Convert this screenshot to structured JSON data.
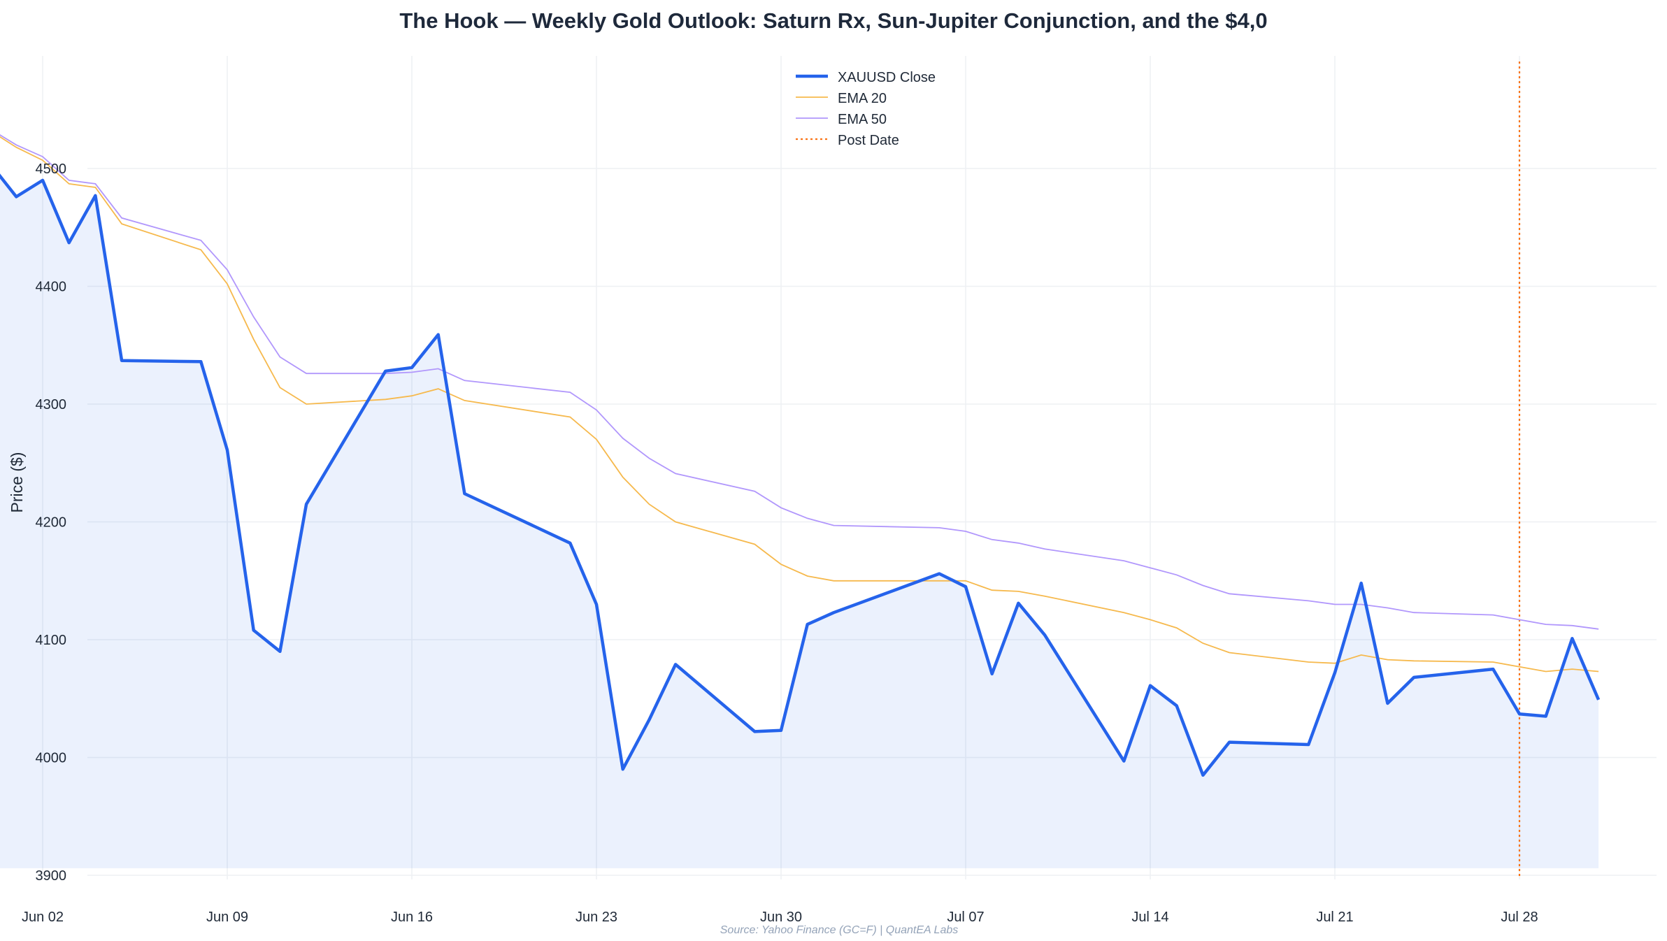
{
  "chart_data": {
    "type": "line",
    "title": "The Hook — Weekly Gold Outlook: Saturn Rx, Sun-Jupiter Conjunction, and the $4,0",
    "xlabel": "",
    "ylabel": "Price ($)",
    "ylim": [
      3900,
      4600
    ],
    "yticks": [
      3900,
      4000,
      4100,
      4200,
      4300,
      4400,
      4500
    ],
    "xticks": [
      {
        "date": "2025-06-02",
        "label": "Jun 02"
      },
      {
        "date": "2025-06-09",
        "label": "Jun 09"
      },
      {
        "date": "2025-06-16",
        "label": "Jun 16"
      },
      {
        "date": "2025-06-23",
        "label": "Jun 23"
      },
      {
        "date": "2025-06-30",
        "label": "Jun 30"
      },
      {
        "date": "2025-07-07",
        "label": "Jul 07"
      },
      {
        "date": "2025-07-14",
        "label": "Jul 14"
      },
      {
        "date": "2025-07-21",
        "label": "Jul 21"
      },
      {
        "date": "2025-07-28",
        "label": "Jul 28"
      }
    ],
    "xlim": [
      "2025-05-27",
      "2025-08-03"
    ],
    "grid": true,
    "legend_position": "top-center",
    "post_date": "2025-07-28",
    "x": [
      "2025-05-29",
      "2025-06-01",
      "2025-06-02",
      "2025-06-03",
      "2025-06-04",
      "2025-06-05",
      "2025-06-08",
      "2025-06-09",
      "2025-06-10",
      "2025-06-11",
      "2025-06-12",
      "2025-06-15",
      "2025-06-16",
      "2025-06-17",
      "2025-06-18",
      "2025-06-22",
      "2025-06-23",
      "2025-06-24",
      "2025-06-25",
      "2025-06-26",
      "2025-06-29",
      "2025-06-30",
      "2025-07-01",
      "2025-07-02",
      "2025-07-06",
      "2025-07-07",
      "2025-07-08",
      "2025-07-09",
      "2025-07-10",
      "2025-07-13",
      "2025-07-14",
      "2025-07-15",
      "2025-07-16",
      "2025-07-17",
      "2025-07-20",
      "2025-07-21",
      "2025-07-22",
      "2025-07-23",
      "2025-07-24",
      "2025-07-27",
      "2025-07-28",
      "2025-07-29",
      "2025-07-30",
      "2025-07-31"
    ],
    "series": [
      {
        "name": "XAUUSD Close",
        "color": "#2563eb",
        "style": "solid-thick",
        "values": [
          4561,
          4476,
          4490,
          4437,
          4477,
          4337,
          4336,
          4261,
          4108,
          4090,
          4215,
          4328,
          4331,
          4359,
          4224,
          4182,
          4130,
          3990,
          4032,
          4079,
          4022,
          4023,
          4113,
          4123,
          4156,
          4145,
          4071,
          4131,
          4104,
          3997,
          4061,
          4044,
          3985,
          4013,
          4011,
          4072,
          4148,
          4046,
          4068,
          4075,
          4037,
          4035,
          4101,
          4049
        ]
      },
      {
        "name": "EMA 20",
        "color": "#f6b94d",
        "style": "solid-thin",
        "values": [
          4561,
          4518,
          4507,
          4487,
          4484,
          4453,
          4431,
          4402,
          4355,
          4314,
          4300,
          4304,
          4307,
          4313,
          4303,
          4289,
          4270,
          4238,
          4215,
          4200,
          4181,
          4164,
          4154,
          4150,
          4150,
          4150,
          4142,
          4141,
          4137,
          4123,
          4117,
          4110,
          4097,
          4089,
          4081,
          4080,
          4087,
          4083,
          4082,
          4081,
          4077,
          4073,
          4075,
          4073
        ]
      },
      {
        "name": "EMA 50",
        "color": "#b197fc",
        "style": "solid-thin",
        "values": [
          4561,
          4520,
          4510,
          4490,
          4487,
          4458,
          4439,
          4414,
          4374,
          4340,
          4326,
          4326,
          4327,
          4330,
          4320,
          4310,
          4295,
          4271,
          4254,
          4241,
          4226,
          4212,
          4203,
          4197,
          4195,
          4192,
          4185,
          4182,
          4177,
          4167,
          4161,
          4155,
          4146,
          4139,
          4133,
          4130,
          4130,
          4127,
          4123,
          4121,
          4117,
          4113,
          4112,
          4109
        ]
      },
      {
        "name": "Post Date",
        "color": "#f97316",
        "style": "dotted"
      }
    ]
  },
  "source_text": "Source: Yahoo Finance (GC=F) | QuantEA Labs"
}
